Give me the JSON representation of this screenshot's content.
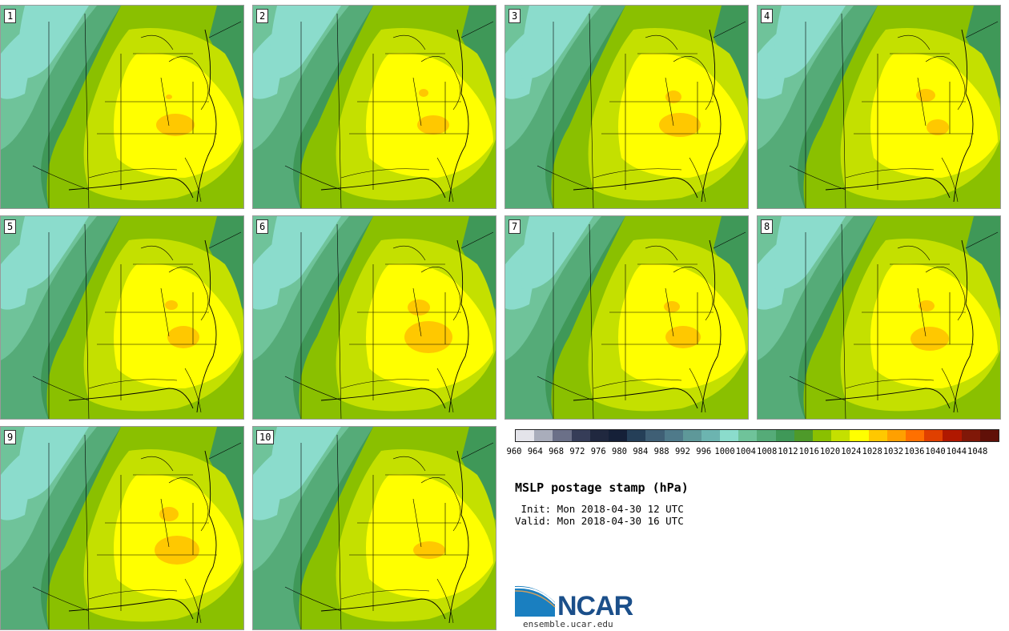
{
  "panels": [
    {
      "label": "1",
      "highs": [
        [
          218,
          155,
          24,
          14
        ],
        [
          210,
          120,
          4,
          3
        ]
      ]
    },
    {
      "label": "2",
      "highs": [
        [
          540,
          155,
          20,
          12
        ],
        [
          528,
          115,
          6,
          5
        ]
      ]
    },
    {
      "label": "3",
      "highs": [
        [
          848,
          155,
          26,
          15
        ],
        [
          840,
          120,
          10,
          8
        ]
      ]
    },
    {
      "label": "4",
      "highs": [
        [
          1170,
          158,
          14,
          10
        ],
        [
          1155,
          118,
          12,
          8
        ]
      ]
    },
    {
      "label": "5",
      "highs": [
        [
          228,
          420,
          20,
          14
        ],
        [
          213,
          380,
          8,
          6
        ]
      ]
    },
    {
      "label": "6",
      "highs": [
        [
          534,
          420,
          30,
          20
        ],
        [
          522,
          383,
          14,
          10
        ]
      ]
    },
    {
      "label": "7",
      "highs": [
        [
          852,
          420,
          22,
          14
        ],
        [
          838,
          382,
          10,
          7
        ]
      ]
    },
    {
      "label": "8",
      "highs": [
        [
          1160,
          422,
          24,
          15
        ],
        [
          1156,
          381,
          10,
          7
        ]
      ]
    },
    {
      "label": "9",
      "highs": [
        [
          220,
          686,
          28,
          18
        ],
        [
          210,
          641,
          12,
          9
        ]
      ]
    },
    {
      "label": "10",
      "highs": [
        [
          535,
          686,
          20,
          11
        ]
      ]
    }
  ],
  "colorbar": {
    "colors": [
      "#e4e4ea",
      "#a9adbb",
      "#6b7088",
      "#363d58",
      "#20283f",
      "#152038",
      "#253f58",
      "#3f5f75",
      "#4f7a8a",
      "#5e9899",
      "#6cb4b0",
      "#8bdccc",
      "#6fc39a",
      "#55ab78",
      "#3f9858",
      "#4e9a2a",
      "#8ac000",
      "#c4e000",
      "#ffff00",
      "#ffc800",
      "#ffa000",
      "#ff7000",
      "#e04000",
      "#b01800",
      "#801808",
      "#601008"
    ],
    "labels": [
      "960",
      "964",
      "968",
      "972",
      "976",
      "980",
      "984",
      "988",
      "992",
      "996",
      "1000",
      "1004",
      "1008",
      "1012",
      "1016",
      "1020",
      "1024",
      "1028",
      "1032",
      "1036",
      "1040",
      "1044",
      "1048"
    ]
  },
  "title": "MSLP postage stamp (hPa)",
  "init_line": " Init: Mon 2018-04-30 12 UTC",
  "valid_line": "Valid: Mon 2018-04-30 16 UTC",
  "logo_text": "NCAR",
  "url": "ensemble.ucar.edu",
  "colors": {
    "pressure_1004": "#8bdccc",
    "pressure_1008": "#6fc39a",
    "pressure_1012": "#55ab78",
    "pressure_1016": "#3f9858",
    "pressure_1020": "#8ac000",
    "pressure_1024": "#c4e000",
    "pressure_1028": "#ffff00",
    "pressure_1032": "#ffc800"
  }
}
